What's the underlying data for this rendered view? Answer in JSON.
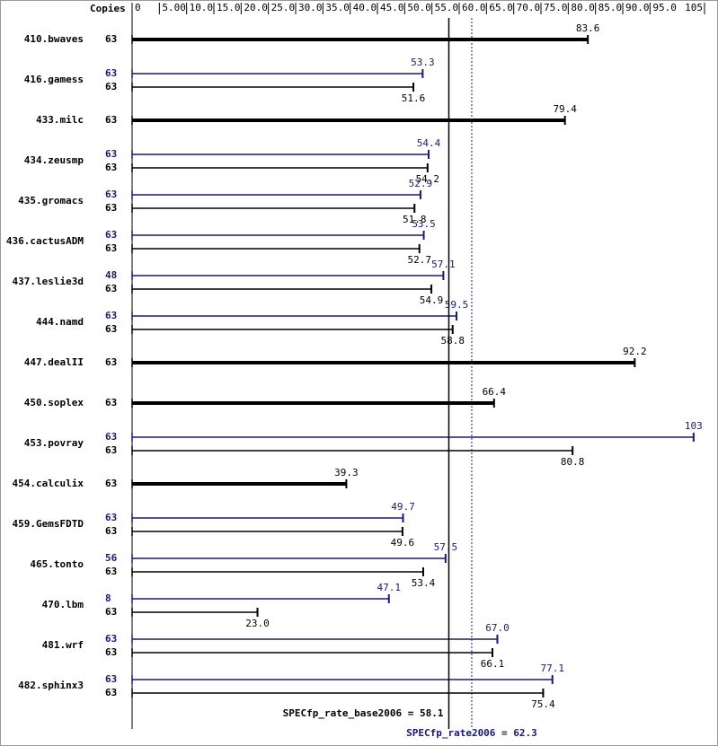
{
  "chart_data": {
    "type": "bar",
    "orientation": "horizontal",
    "copies_header": "Copies",
    "categories": [
      "410.bwaves",
      "416.gamess",
      "433.milc",
      "434.zeusmp",
      "435.gromacs",
      "436.cactusADM",
      "437.leslie3d",
      "444.namd",
      "447.dealII",
      "450.soplex",
      "453.povray",
      "454.calculix",
      "459.GemsFDTD",
      "465.tonto",
      "470.lbm",
      "481.wrf",
      "482.sphinx3"
    ],
    "xlim": [
      0,
      105
    ],
    "xticks": [
      0,
      {
        "value": 5,
        "label": "5.00"
      },
      {
        "value": 10,
        "label": "10.0"
      },
      {
        "value": 15,
        "label": "15.0"
      },
      {
        "value": 20,
        "label": "20.0"
      },
      {
        "value": 25,
        "label": "25.0"
      },
      {
        "value": 30,
        "label": "30.0"
      },
      {
        "value": 35,
        "label": "35.0"
      },
      {
        "value": 40,
        "label": "40.0"
      },
      {
        "value": 45,
        "label": "45.0"
      },
      {
        "value": 50,
        "label": "50.0"
      },
      {
        "value": 55,
        "label": "55.0"
      },
      {
        "value": 60,
        "label": "60.0"
      },
      {
        "value": 65,
        "label": "65.0"
      },
      {
        "value": 70,
        "label": "70.0"
      },
      {
        "value": 75,
        "label": "75.0"
      },
      {
        "value": 80,
        "label": "80.0"
      },
      {
        "value": 85,
        "label": "85.0"
      },
      {
        "value": 90,
        "label": "90.0"
      },
      {
        "value": 95,
        "label": "95.0"
      },
      105
    ],
    "series": [
      {
        "label": "SPECfp_rate_base2006 = 58.1",
        "overall": 58.1,
        "color": "#000000",
        "copies": [
          63,
          63,
          63,
          63,
          63,
          63,
          63,
          63,
          63,
          63,
          63,
          63,
          63,
          63,
          63,
          63,
          63
        ],
        "values": [
          83.6,
          51.6,
          79.4,
          54.2,
          51.8,
          52.7,
          54.9,
          58.8,
          92.2,
          66.4,
          80.8,
          39.3,
          49.6,
          53.4,
          23.0,
          66.1,
          75.4
        ],
        "value_labels": [
          "83.6",
          "51.6",
          "79.4",
          "54.2",
          "51.8",
          "52.7",
          "54.9",
          "58.8",
          "92.2",
          "66.4",
          "80.8",
          "39.3",
          "49.6",
          "53.4",
          "23.0",
          "66.1",
          "75.4"
        ]
      },
      {
        "label": "SPECfp_rate2006 = 62.3",
        "overall": 62.3,
        "color": "#191970",
        "copies": [
          null,
          63,
          null,
          63,
          63,
          63,
          48,
          63,
          null,
          null,
          63,
          null,
          63,
          56,
          8,
          63,
          63
        ],
        "values": [
          null,
          53.3,
          null,
          54.4,
          52.9,
          53.5,
          57.1,
          59.5,
          null,
          null,
          103,
          null,
          49.7,
          57.5,
          47.1,
          67.0,
          77.1
        ],
        "value_labels": [
          null,
          "53.3",
          null,
          "54.4",
          "52.9",
          "53.5",
          "57.1",
          "59.5",
          null,
          null,
          "103",
          null,
          "49.7",
          "57.5",
          "47.1",
          "67.0",
          "77.1"
        ]
      }
    ]
  }
}
